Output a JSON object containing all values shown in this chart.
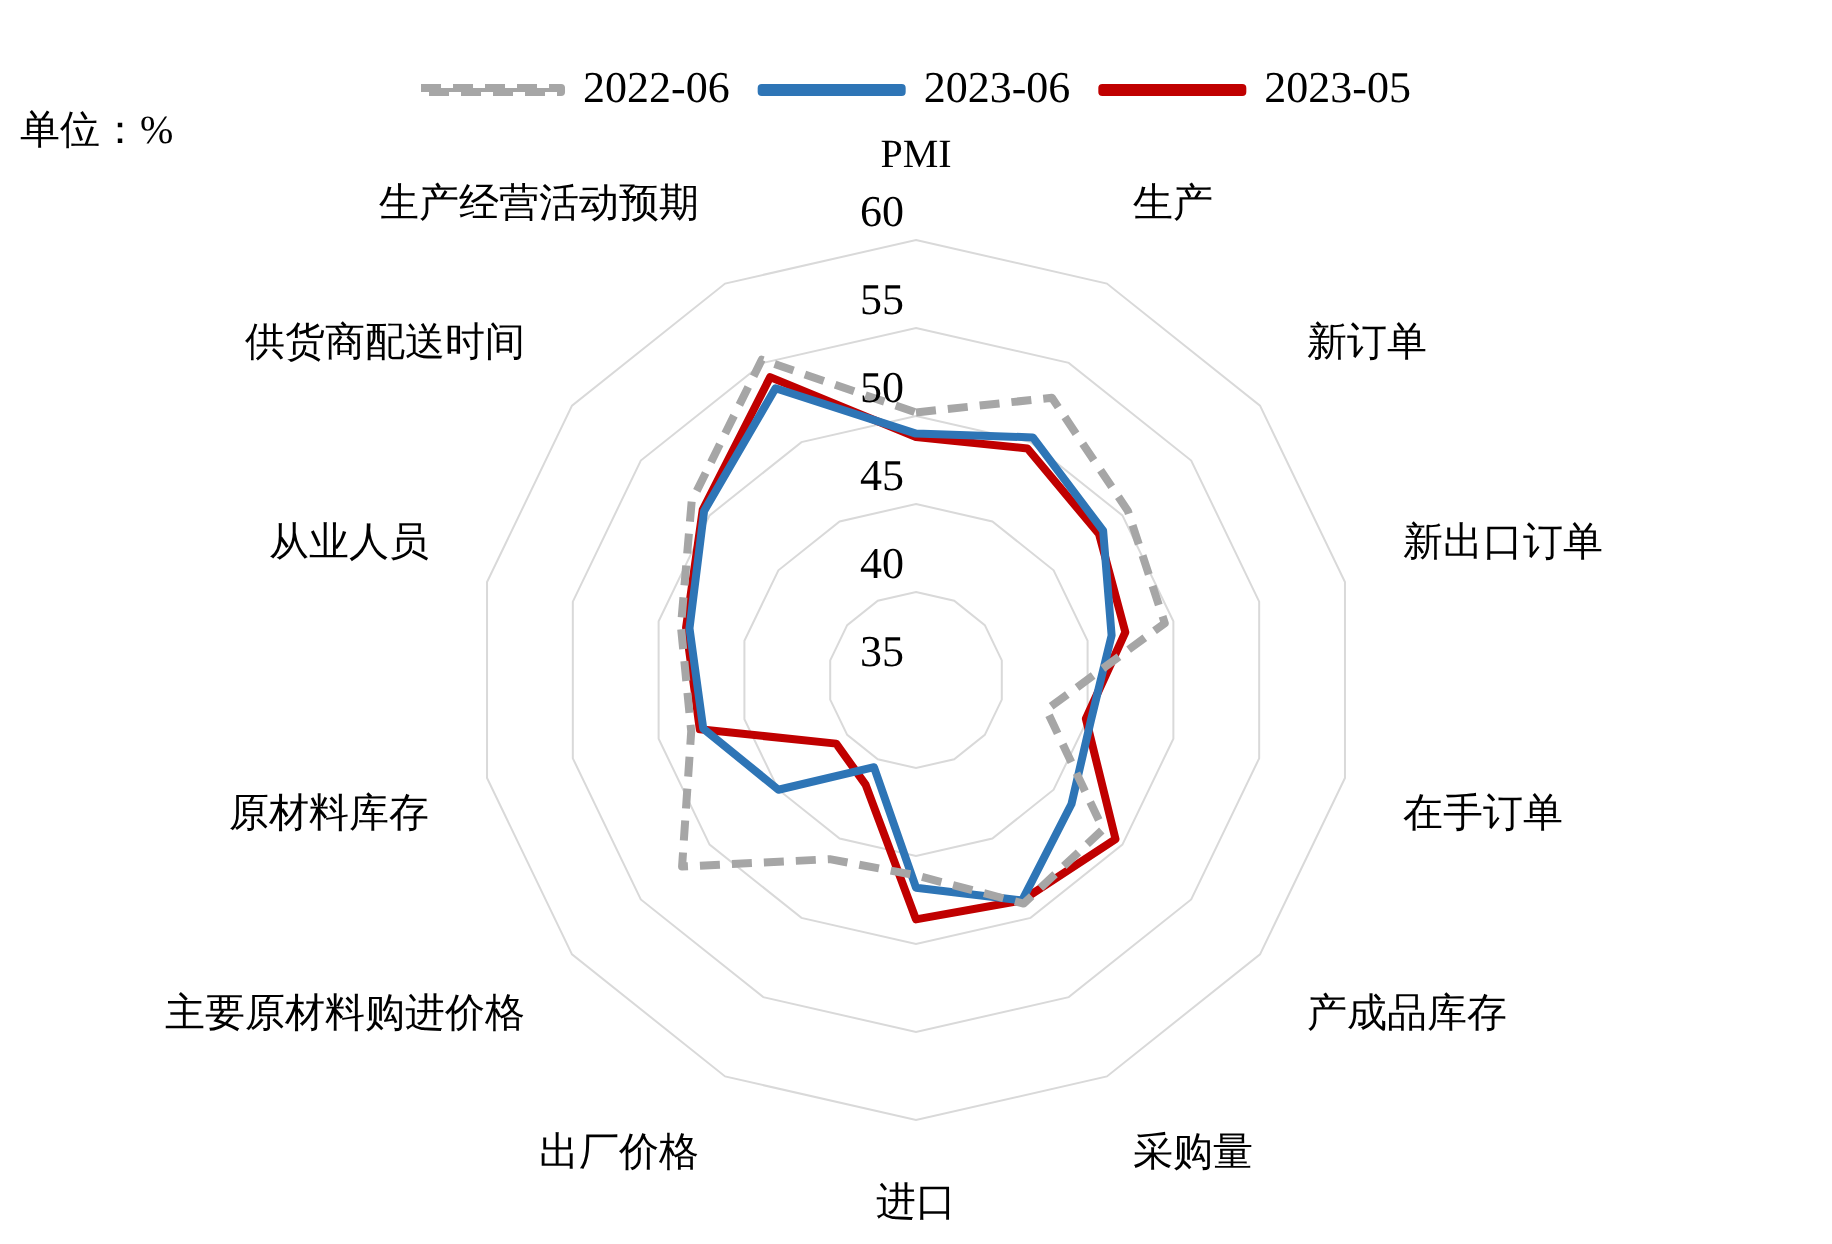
{
  "chart_data": {
    "type": "radar",
    "annotations": [
      "单位：%"
    ],
    "categories": [
      "PMI",
      "生产",
      "新订单",
      "新出口订单",
      "在手订单",
      "产成品库存",
      "采购量",
      "进口",
      "出厂价格",
      "主要原材料购进价格",
      "原材料库存",
      "从业人员",
      "供货商配送时间",
      "生产经营活动预期"
    ],
    "series": [
      {
        "name": "2022-06",
        "color": "#a6a6a6",
        "line_style": "dashed",
        "values": [
          50.2,
          52.8,
          50.4,
          49.5,
          42.6,
          48.6,
          49.1,
          46.1,
          46.3,
          52.0,
          48.1,
          48.7,
          51.3,
          55.2
        ]
      },
      {
        "name": "2023-06",
        "color": "#2e75b6",
        "line_style": "solid",
        "values": [
          49.0,
          50.3,
          48.6,
          46.4,
          45.2,
          46.3,
          48.9,
          46.8,
          40.5,
          45.0,
          47.4,
          48.2,
          50.4,
          53.4
        ]
      },
      {
        "name": "2023-05",
        "color": "#c00000",
        "line_style": "solid",
        "values": [
          48.8,
          49.6,
          48.3,
          47.2,
          44.9,
          49.5,
          48.9,
          48.6,
          41.6,
          40.8,
          47.6,
          48.4,
          50.5,
          54.1
        ]
      }
    ],
    "ylim": [
      35,
      60
    ],
    "yticks": [
      35,
      40,
      45,
      50,
      55,
      60
    ],
    "grid": true,
    "legend": "top",
    "marker": "none"
  }
}
